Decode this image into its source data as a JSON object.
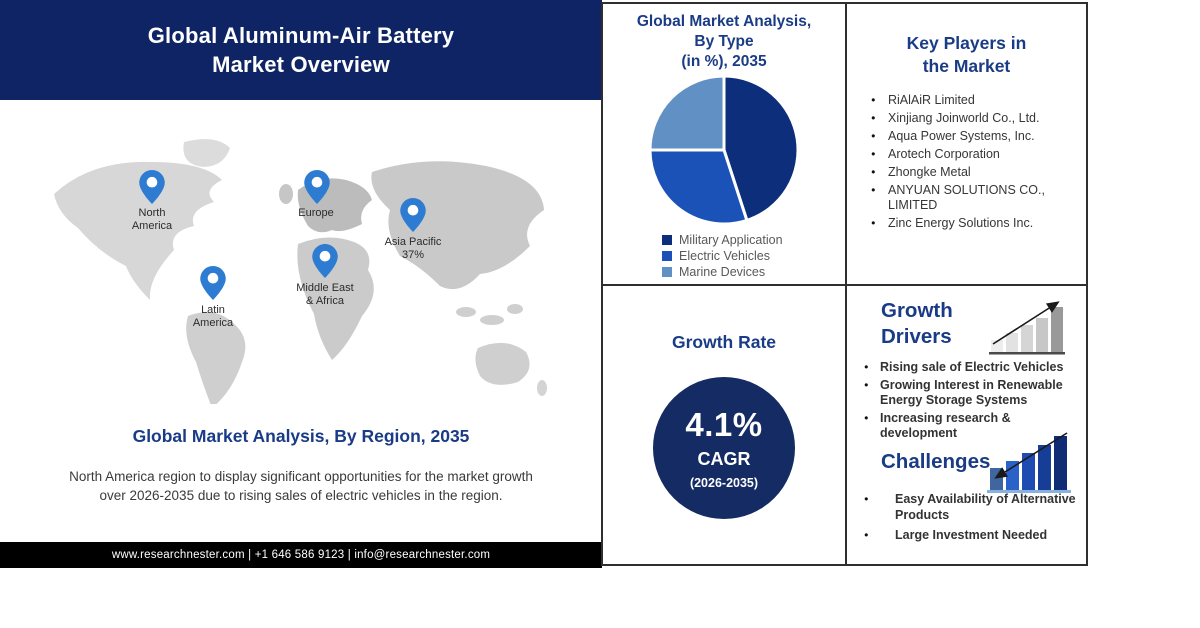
{
  "colors": {
    "header_bg": "#0E2464",
    "accent_navy": "#1A3B85",
    "pin_blue": "#2E7CD1",
    "footer_bg": "#000000",
    "circle_navy": "#142B63",
    "legend_text": "#595959",
    "body_text": "#3A3A3A",
    "border_dark": "#2F2F2F",
    "map_gray": "#D2D2D2"
  },
  "header": {
    "title_line1": "Global Aluminum-Air Battery",
    "title_line2": "Market Overview"
  },
  "map": {
    "pins": [
      {
        "region": "North America",
        "line1": "North",
        "line2": "America"
      },
      {
        "region": "Europe",
        "line1": "Europe",
        "line2": ""
      },
      {
        "region": "Asia Pacific",
        "line1": "Asia Pacific",
        "line2": "37%"
      },
      {
        "region": "Middle East & Africa",
        "line1": "Middle East",
        "line2": "& Africa"
      },
      {
        "region": "Latin America",
        "line1": "Latin",
        "line2": "America"
      }
    ]
  },
  "region_section": {
    "heading": "Global Market Analysis, By Region, 2035",
    "description": "North America region to display significant opportunities for the market growth over 2026-2035 due to rising sales of electric vehicles in the region."
  },
  "footer": {
    "text": "www.researchnester.com | +1 646 586 9123 | info@researchnester.com"
  },
  "type_panel": {
    "title_line1": "Global Market Analysis,",
    "title_line2": "By Type",
    "title_line3": "(in %), 2035",
    "legend": [
      "Military Application",
      "Electric Vehicles",
      "Marine Devices"
    ]
  },
  "key_players_panel": {
    "title_line1": "Key Players in",
    "title_line2": "the Market",
    "items": [
      "RiAlAiR Limited",
      "Xinjiang Joinworld Co., Ltd.",
      "Aqua Power Systems, Inc.",
      "Arotech Corporation",
      "Zhongke Metal",
      "ANYUAN SOLUTIONS CO., LIMITED",
      "Zinc Energy Solutions Inc."
    ]
  },
  "growth_rate_panel": {
    "title": "Growth Rate",
    "value": "4.1%",
    "label": "CAGR",
    "period": "(2026-2035)"
  },
  "growth_drivers_panel": {
    "title_line1": "Growth",
    "title_line2": "Drivers",
    "items": [
      "Rising sale of Electric Vehicles",
      "Growing Interest in Renewable Energy Storage Systems",
      "Increasing research & development"
    ]
  },
  "challenges_panel": {
    "title": "Challenges",
    "items": [
      "Easy Availability of Alternative Products",
      "Large Investment Needed"
    ]
  },
  "chart_data": {
    "type": "pie",
    "title": "Global Market Analysis, By Type (in %), 2035",
    "labels": [
      "Military Application",
      "Electric Vehicles",
      "Marine Devices"
    ],
    "values": [
      45,
      30,
      25
    ],
    "colors": [
      "#0D2E7B",
      "#1A52B8",
      "#6190C4"
    ],
    "legend_position": "bottom",
    "note_values_estimated_from_angles": true
  }
}
